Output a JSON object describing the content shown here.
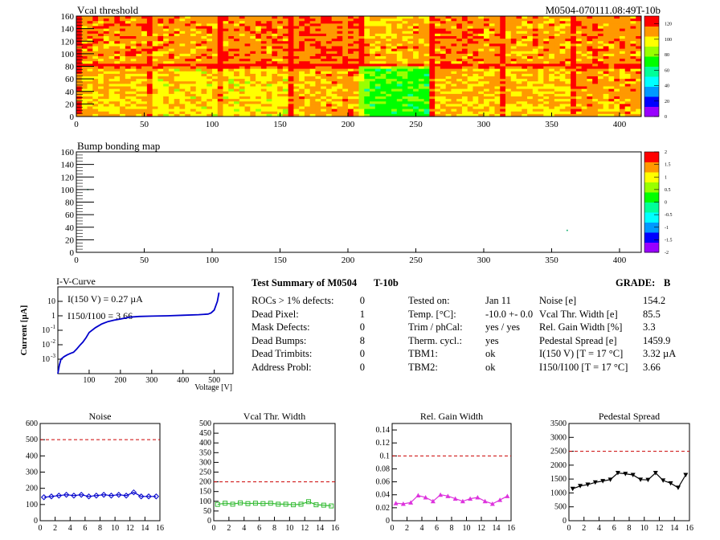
{
  "header": {
    "title": "Vcal threshold",
    "module_id": "M0504-070111.08:49T-10b"
  },
  "bump_map": {
    "title": "Bump bonding map"
  },
  "summary": {
    "title": "Test Summary of M0504",
    "temp_tag": "T-10b",
    "grade_label": "GRADE:",
    "grade_value": "B",
    "col1": [
      {
        "label": "ROCs > 1% defects:",
        "value": "0"
      },
      {
        "label": "Dead Pixel:",
        "value": "1"
      },
      {
        "label": "Mask Defects:",
        "value": "0"
      },
      {
        "label": "Dead Bumps:",
        "value": "8"
      },
      {
        "label": "Dead Trimbits:",
        "value": "0"
      },
      {
        "label": "Address Probl:",
        "value": "0"
      }
    ],
    "col2": [
      {
        "label": "Tested on:",
        "value": "Jan 11"
      },
      {
        "label": "Temp. [°C]:",
        "value": "-10.0 +- 0.0"
      },
      {
        "label": "Trim / phCal:",
        "value": "yes / yes"
      },
      {
        "label": "Therm. cycl.:",
        "value": "yes"
      },
      {
        "label": "TBM1:",
        "value": "ok"
      },
      {
        "label": "TBM2:",
        "value": "ok"
      }
    ],
    "col3": [
      {
        "label": "Noise [e]",
        "value": "154.2"
      },
      {
        "label": "Vcal Thr. Width [e]",
        "value": "85.5"
      },
      {
        "label": "Rel. Gain Width [%]",
        "value": "3.3"
      },
      {
        "label": "Pedestal Spread [e]",
        "value": "1459.9"
      },
      {
        "label": "I(150 V) [T = 17 °C]",
        "value": "3.32 µA"
      },
      {
        "label": "I150/I100 [T = 17 °C]",
        "value": "3.66"
      }
    ]
  },
  "chart_data": [
    {
      "type": "heatmap",
      "title": "Vcal threshold",
      "x_range": [
        0,
        416
      ],
      "y_range": [
        0,
        160
      ],
      "xticks": [
        "0",
        "50",
        "100",
        "150",
        "200",
        "250",
        "300",
        "350",
        "400"
      ],
      "yticks": [
        "0",
        "20",
        "40",
        "60",
        "80",
        "100",
        "120",
        "140",
        "160"
      ],
      "colorbar_ticks": [
        "0",
        "20",
        "40",
        "60",
        "80",
        "100",
        "120"
      ],
      "roc_mean_top": [
        112,
        110,
        112,
        114,
        108,
        112,
        109,
        111
      ],
      "roc_mean_bottom": [
        104,
        100,
        100,
        108,
        74,
        106,
        104,
        109
      ],
      "colors": [
        "#9900ff",
        "#0000ff",
        "#0099ff",
        "#00ffff",
        "#00ff99",
        "#00ff00",
        "#99ff00",
        "#ffff00",
        "#ff9900",
        "#ff0000"
      ]
    },
    {
      "type": "heatmap",
      "title": "Bump bonding map",
      "x_range": [
        0,
        416
      ],
      "y_range": [
        0,
        160
      ],
      "xticks": [
        "0",
        "50",
        "100",
        "150",
        "200",
        "250",
        "300",
        "350",
        "400"
      ],
      "yticks": [
        "0",
        "20",
        "40",
        "60",
        "80",
        "100",
        "120",
        "140",
        "160"
      ],
      "colorbar_ticks": [
        "-2",
        "-1.5",
        "-1",
        "-0.5",
        "0",
        "0.5",
        "1",
        "1.5",
        "2"
      ],
      "marked_pixels": [
        [
          8,
          101
        ],
        [
          361,
          36
        ]
      ]
    },
    {
      "type": "line",
      "title": "I-V-Curve",
      "xlabel": "Voltage [V]",
      "ylabel": "Current [µA]",
      "log_y": true,
      "xticks": [
        "100",
        "200",
        "300",
        "400",
        "500"
      ],
      "yticks": [
        "10^-3",
        "10^-2",
        "10^-1",
        "1",
        "10"
      ],
      "annotation_1": "I(150 V) = 0.27 µA",
      "annotation_2": "I150/I100 = 3.66",
      "x": [
        0,
        5,
        10,
        20,
        30,
        40,
        50,
        60,
        70,
        80,
        90,
        100,
        120,
        140,
        160,
        180,
        200,
        230,
        260,
        300,
        350,
        400,
        450,
        480,
        490,
        500,
        510,
        515
      ],
      "y": [
        0.0001,
        0.0004,
        0.001,
        0.0015,
        0.002,
        0.0025,
        0.003,
        0.005,
        0.009,
        0.015,
        0.03,
        0.07,
        0.15,
        0.27,
        0.4,
        0.5,
        0.6,
        0.8,
        0.9,
        0.95,
        1.0,
        1.1,
        1.2,
        1.3,
        1.6,
        2.5,
        10,
        40
      ]
    },
    {
      "type": "line",
      "title": "Noise",
      "x_range": [
        0,
        16
      ],
      "y_range": [
        0,
        600
      ],
      "xticks": [
        "0",
        "2",
        "4",
        "6",
        "8",
        "10",
        "12",
        "14",
        "16"
      ],
      "yticks": [
        "0",
        "100",
        "200",
        "300",
        "400",
        "500",
        "600"
      ],
      "threshold": 500,
      "color": "#0000cc",
      "x": [
        0.5,
        1.5,
        2.5,
        3.5,
        4.5,
        5.5,
        6.5,
        7.5,
        8.5,
        9.5,
        10.5,
        11.5,
        12.5,
        13.5,
        14.5,
        15.5
      ],
      "y": [
        145,
        150,
        155,
        160,
        155,
        160,
        150,
        155,
        160,
        155,
        160,
        155,
        175,
        150,
        150,
        150
      ]
    },
    {
      "type": "line",
      "title": "Vcal Thr. Width",
      "x_range": [
        0,
        16
      ],
      "y_range": [
        0,
        500
      ],
      "xticks": [
        "0",
        "2",
        "4",
        "6",
        "8",
        "10",
        "12",
        "14",
        "16"
      ],
      "yticks": [
        "0",
        "50",
        "100",
        "150",
        "200",
        "250",
        "300",
        "350",
        "400",
        "450",
        "500"
      ],
      "threshold": 200,
      "color": "#33bb33",
      "x": [
        0.5,
        1.5,
        2.5,
        3.5,
        4.5,
        5.5,
        6.5,
        7.5,
        8.5,
        9.5,
        10.5,
        11.5,
        12.5,
        13.5,
        14.5,
        15.5
      ],
      "y": [
        84,
        90,
        85,
        92,
        88,
        90,
        88,
        90,
        85,
        85,
        82,
        85,
        98,
        82,
        80,
        76
      ]
    },
    {
      "type": "line",
      "title": "Rel. Gain Width",
      "x_range": [
        0,
        16
      ],
      "y_range": [
        0,
        0.15
      ],
      "xticks": [
        "0",
        "2",
        "4",
        "6",
        "8",
        "10",
        "12",
        "14",
        "16"
      ],
      "yticks": [
        "0",
        "0.02",
        "0.04",
        "0.06",
        "0.08",
        "0.1",
        "0.12",
        "0.14"
      ],
      "threshold": 0.1,
      "color": "#dd33dd",
      "x": [
        0.5,
        1.5,
        2.5,
        3.5,
        4.5,
        5.5,
        6.5,
        7.5,
        8.5,
        9.5,
        10.5,
        11.5,
        12.5,
        13.5,
        14.5,
        15.5
      ],
      "y": [
        0.027,
        0.026,
        0.028,
        0.039,
        0.036,
        0.03,
        0.04,
        0.038,
        0.034,
        0.03,
        0.034,
        0.036,
        0.03,
        0.026,
        0.032,
        0.038
      ]
    },
    {
      "type": "line",
      "title": "Pedestal Spread",
      "x_range": [
        0,
        16
      ],
      "y_range": [
        0,
        3500
      ],
      "xticks": [
        "0",
        "2",
        "4",
        "6",
        "8",
        "10",
        "12",
        "14",
        "16"
      ],
      "yticks": [
        "0",
        "500",
        "1000",
        "1500",
        "2000",
        "2500",
        "3000",
        "3500"
      ],
      "threshold": 2500,
      "color": "#000000",
      "x": [
        0.5,
        1.5,
        2.5,
        3.5,
        4.5,
        5.5,
        6.5,
        7.5,
        8.5,
        9.5,
        10.5,
        11.5,
        12.5,
        13.5,
        14.5,
        15.5
      ],
      "y": [
        1150,
        1250,
        1300,
        1380,
        1430,
        1480,
        1720,
        1690,
        1650,
        1480,
        1470,
        1720,
        1450,
        1350,
        1190,
        1650
      ]
    }
  ]
}
